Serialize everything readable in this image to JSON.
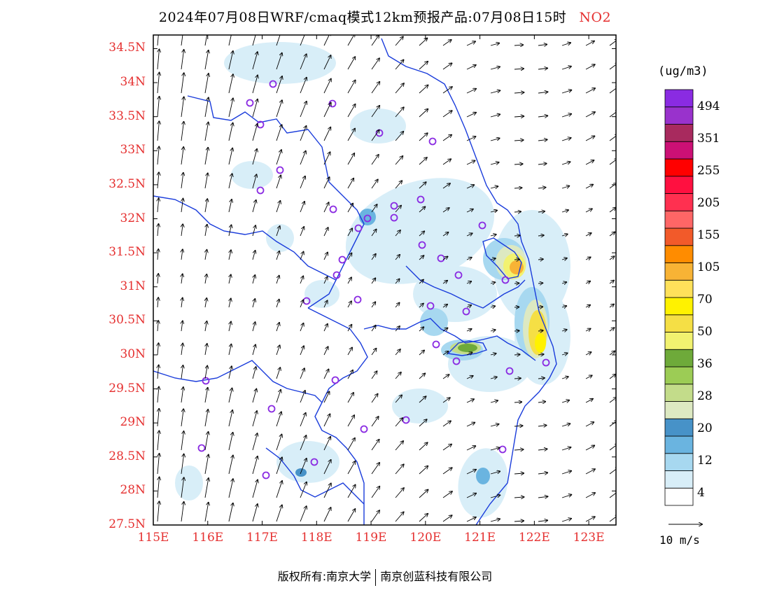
{
  "title": {
    "text": "2024年07月08日WRF/cmaq模式12km预报产品:07月08日15时",
    "pollutant": "NO2"
  },
  "axes": {
    "lat_labels": [
      "34.5N",
      "34N",
      "33.5N",
      "33N",
      "32.5N",
      "32N",
      "31.5N",
      "31N",
      "30.5N",
      "30N",
      "29.5N",
      "29N",
      "28.5N",
      "28N",
      "27.5N"
    ],
    "lon_labels": [
      "115E",
      "116E",
      "117E",
      "118E",
      "119E",
      "120E",
      "121E",
      "122E",
      "123E"
    ],
    "lat_range": [
      27.5,
      34.7
    ],
    "lon_range": [
      115,
      123.5
    ]
  },
  "colorbar": {
    "unit": "(ug/m3)",
    "labels": [
      "494",
      "351",
      "255",
      "205",
      "155",
      "105",
      "70",
      "50",
      "36",
      "28",
      "20",
      "12",
      "4"
    ],
    "colors": [
      "#ffffff",
      "#d8eef8",
      "#a7d8f0",
      "#6ab4e0",
      "#4792c8",
      "#dde9c2",
      "#c3dc8a",
      "#9ccc55",
      "#6eaa3a",
      "#f2f270",
      "#f5df45",
      "#fff200",
      "#ffe15a",
      "#f8b335",
      "#ff8c00",
      "#f25a2a",
      "#ff6666",
      "#ff3050",
      "#ff1040",
      "#ff0000",
      "#cc1075",
      "#a82a5e",
      "#9932cc",
      "#8a2be2"
    ]
  },
  "wind_reference": "10 m/s",
  "footer": {
    "left": "版权所有:南京大学",
    "right": "南京创蓝科技有限公司"
  },
  "accent_colors": {
    "axis_label": "#e53030",
    "boundary": "#1a3cdb",
    "station": "#8a2be2"
  }
}
